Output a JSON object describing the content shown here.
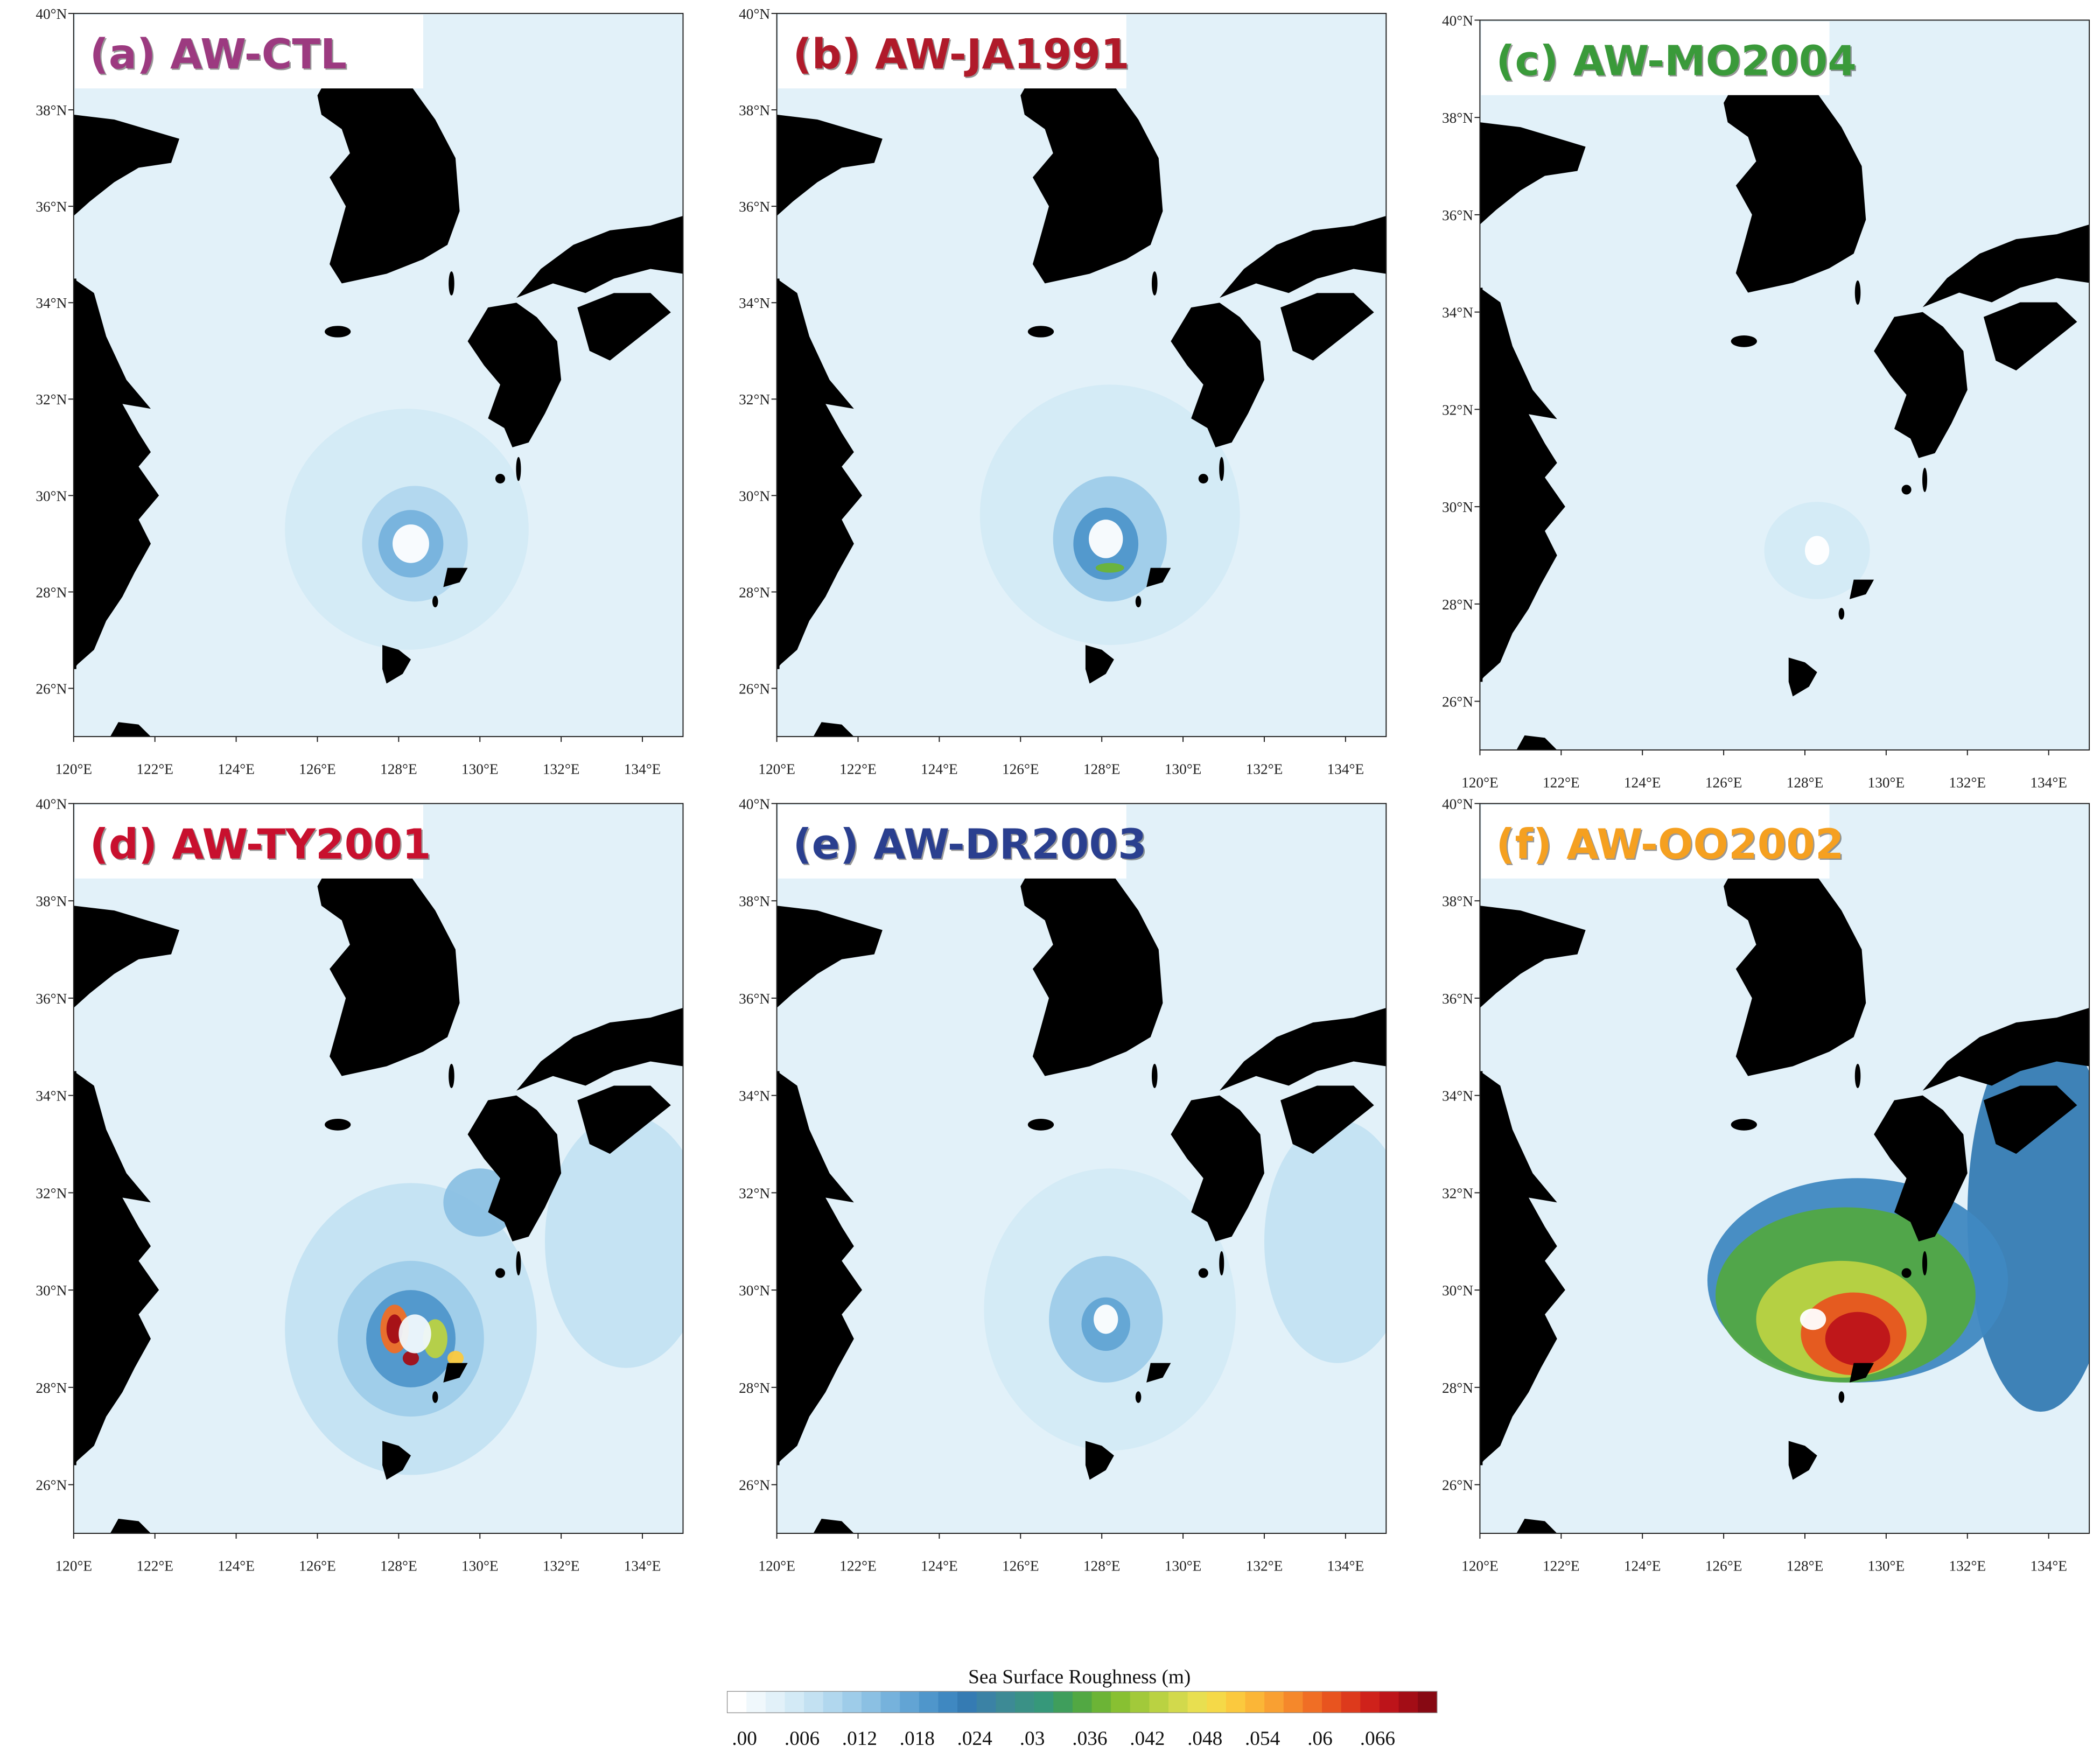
{
  "panels": [
    {
      "title": "(a) AW-CTL",
      "title_color": "#9c3a80"
    },
    {
      "title": "(b) AW-JA1991",
      "title_color": "#b01a2a"
    },
    {
      "title": "(c) AW-MO2004",
      "title_color": "#3a9a3a"
    },
    {
      "title": "(d) AW-TY2001",
      "title_color": "#c8102e"
    },
    {
      "title": "(e) AW-DR2003",
      "title_color": "#2a3f8f"
    },
    {
      "title": "(f) AW-OO2002",
      "title_color": "#f5a020"
    }
  ],
  "lat_ticks": [
    "40°N",
    "38°N",
    "36°N",
    "34°N",
    "32°N",
    "30°N",
    "28°N",
    "26°N"
  ],
  "lon_ticks": [
    "120°E",
    "122°E",
    "124°E",
    "126°E",
    "128°E",
    "130°E",
    "132°E",
    "134°E"
  ],
  "colorbar": {
    "title": "Sea Surface Roughness  (m)",
    "labels": [
      ".00",
      ".006",
      ".012",
      ".018",
      ".024",
      ".03",
      ".036",
      ".042",
      ".048",
      ".054",
      ".06",
      ".066"
    ],
    "colors": [
      "#ffffff",
      "#f0f8fc",
      "#e2f1f9",
      "#d3eaf6",
      "#c3e1f2",
      "#b1d7ee",
      "#9ecce9",
      "#8bc0e3",
      "#76b2dc",
      "#62a4d4",
      "#4f96cb",
      "#3f88c1",
      "#357bb3",
      "#3b82a5",
      "#3d8a95",
      "#3a9186",
      "#36987a",
      "#3f9e5c",
      "#52a843",
      "#6cb436",
      "#88c032",
      "#a2c93a",
      "#bad242",
      "#d2d94c",
      "#e8df50",
      "#f5d948",
      "#fbc93e",
      "#fbb637",
      "#f9a032",
      "#f5882b",
      "#f06e25",
      "#e8541f",
      "#dd3a1c",
      "#cf221b",
      "#bd141a",
      "#a30d16",
      "#870913"
    ]
  }
}
